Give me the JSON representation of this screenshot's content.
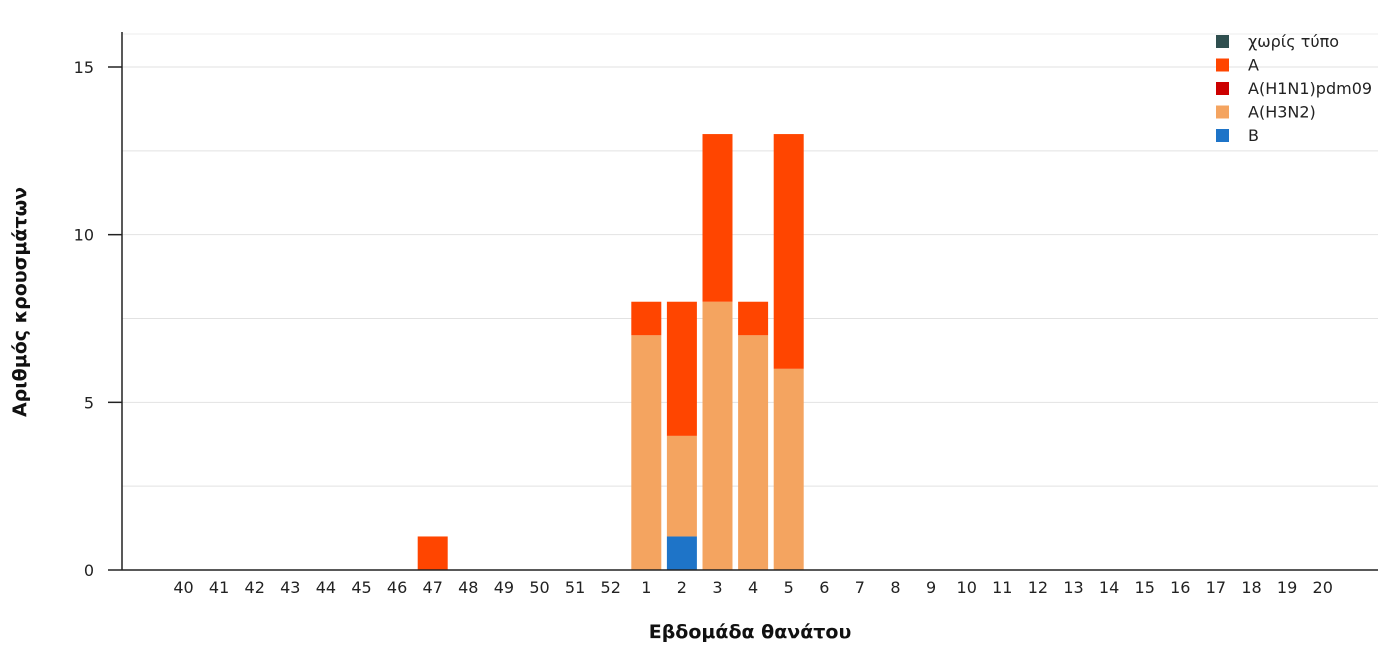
{
  "chart_data": {
    "type": "bar",
    "stacked": true,
    "title": "",
    "xlabel": "Εβδομάδα θανάτου",
    "ylabel": "Αριθμός κρουσμάτων",
    "ylim": [
      0,
      15
    ],
    "y_ticks": [
      0,
      5,
      10,
      15
    ],
    "y_tick_labels": [
      "0",
      "5",
      "10",
      "15"
    ],
    "grid": "horizontal",
    "legend_position": "top-right",
    "categories": [
      "40",
      "41",
      "42",
      "43",
      "44",
      "45",
      "46",
      "47",
      "48",
      "49",
      "50",
      "51",
      "52",
      "1",
      "2",
      "3",
      "4",
      "5",
      "6",
      "7",
      "8",
      "9",
      "10",
      "11",
      "12",
      "13",
      "14",
      "15",
      "16",
      "17",
      "18",
      "19",
      "20"
    ],
    "series": [
      {
        "name": "χωρίς τύπο",
        "color": "#2f4f4f",
        "values": [
          0,
          0,
          0,
          0,
          0,
          0,
          0,
          0,
          0,
          0,
          0,
          0,
          0,
          0,
          0,
          0,
          0,
          0,
          0,
          0,
          0,
          0,
          0,
          0,
          0,
          0,
          0,
          0,
          0,
          0,
          0,
          0,
          0
        ]
      },
      {
        "name": "A",
        "color": "#ff4500",
        "values": [
          0,
          0,
          0,
          0,
          0,
          0,
          0,
          1,
          0,
          0,
          0,
          0,
          0,
          1,
          4,
          5,
          1,
          7,
          0,
          0,
          0,
          0,
          0,
          0,
          0,
          0,
          0,
          0,
          0,
          0,
          0,
          0,
          0
        ]
      },
      {
        "name": "A(H1N1)pdm09",
        "color": "#cc0000",
        "values": [
          0,
          0,
          0,
          0,
          0,
          0,
          0,
          0,
          0,
          0,
          0,
          0,
          0,
          0,
          0,
          0,
          0,
          0,
          0,
          0,
          0,
          0,
          0,
          0,
          0,
          0,
          0,
          0,
          0,
          0,
          0,
          0,
          0
        ]
      },
      {
        "name": "A(H3N2)",
        "color": "#f4a460",
        "values": [
          0,
          0,
          0,
          0,
          0,
          0,
          0,
          0,
          0,
          0,
          0,
          0,
          0,
          7,
          3,
          8,
          7,
          6,
          0,
          0,
          0,
          0,
          0,
          0,
          0,
          0,
          0,
          0,
          0,
          0,
          0,
          0,
          0
        ]
      },
      {
        "name": "B",
        "color": "#1e74c8",
        "values": [
          0,
          0,
          0,
          0,
          0,
          0,
          0,
          0,
          0,
          0,
          0,
          0,
          0,
          0,
          1,
          0,
          0,
          0,
          0,
          0,
          0,
          0,
          0,
          0,
          0,
          0,
          0,
          0,
          0,
          0,
          0,
          0,
          0
        ]
      }
    ],
    "stack_order_bottom_to_top": [
      "B",
      "A(H3N2)",
      "A(H1N1)pdm09",
      "A",
      "χωρίς τύπο"
    ]
  }
}
